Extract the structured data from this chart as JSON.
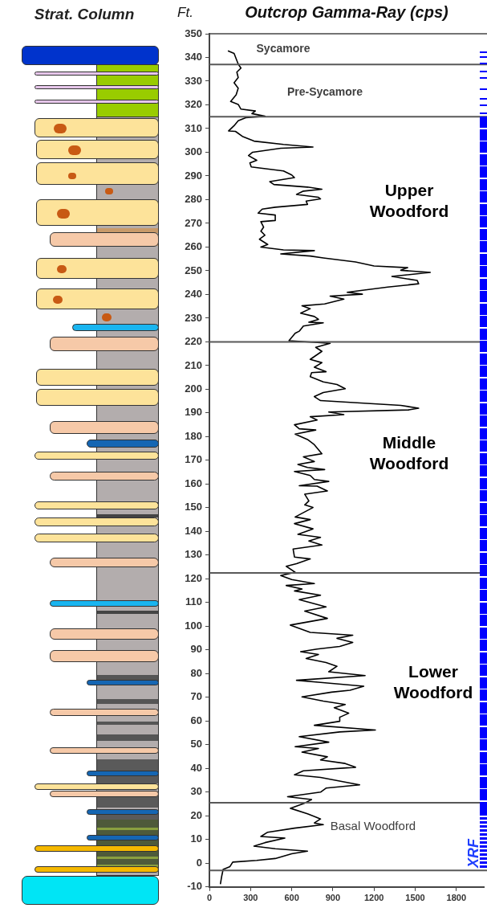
{
  "chart_data": {
    "type": "line",
    "title": "Outcrop Gamma-Ray (cps)",
    "ylabel": "Ft.",
    "xlim": [
      0,
      2000
    ],
    "xticks": [
      0,
      300,
      600,
      900,
      1200,
      1500,
      1800
    ],
    "ylim": [
      -10,
      350
    ],
    "yticks": [
      -10,
      0,
      10,
      20,
      30,
      40,
      50,
      60,
      70,
      80,
      90,
      100,
      110,
      120,
      130,
      140,
      150,
      160,
      170,
      180,
      190,
      200,
      210,
      220,
      230,
      240,
      250,
      260,
      270,
      280,
      290,
      300,
      310,
      320,
      330,
      340,
      350
    ],
    "grid": false,
    "legend": false,
    "marker": "none",
    "line_style": "solid",
    "series": [
      {
        "color": "#000000",
        "x": [
          135,
          180,
          210,
          230,
          200,
          210,
          180,
          210,
          195,
          155,
          210,
          230,
          335,
          310,
          405,
          265,
          210,
          180,
          140,
          190,
          240,
          325,
          540,
          755,
          520,
          315,
          285,
          345,
          295,
          305,
          540,
          600,
          620,
          440,
          470,
          715,
          820,
          685,
          635,
          795,
          810,
          705,
          715,
          480,
          385,
          355,
          480,
          480,
          375,
          395,
          375,
          405,
          365,
          425,
          375,
          540,
          765,
          520,
          735,
          830,
          1065,
          1200,
          1445,
          1395,
          1610,
          1330,
          1515,
          1525,
          1300,
          1105,
          1005,
          1115,
          880,
          980,
          840,
          675,
          735,
          665,
          765,
          795,
          725,
          830,
          685,
          655,
          625,
          580,
          880,
          775,
          820,
          735,
          820,
          765,
          850,
          745,
          735,
          830,
          930,
          990,
          830,
          765,
          810,
          1125,
          1395,
          1525,
          1455,
          870,
          980,
          735,
          785,
          620,
          655,
          775,
          625,
          715,
          765,
          820,
          685,
          765,
          645,
          715,
          840,
          620,
          735,
          765,
          870,
          655,
          785,
          860,
          695,
          725,
          695,
          755,
          625,
          735,
          620,
          755,
          645,
          810,
          725,
          820,
          610,
          620,
          735,
          635,
          560,
          625,
          520,
          600,
          765,
          560,
          675,
          620,
          810,
          655,
          850,
          695,
          860,
          590,
          735,
          1045,
          930,
          1045,
          950,
          785,
          665,
          795,
          705,
          850,
          930,
          870,
          1135,
          635,
          810,
          1125,
          1025,
          890,
          675,
          830,
          990,
          910,
          1015,
          950,
          950,
          765,
          1210,
          950,
          655,
          870,
          625,
          795,
          675,
          860,
          810,
          990,
          1065,
          685,
          620,
          810,
          1095,
          850,
          810,
          570,
          745,
          695,
          590,
          715,
          810,
          765,
          830,
          620,
          425,
          375,
          550,
          405,
          325,
          480,
          715,
          600,
          480,
          345,
          170,
          150,
          100,
          90,
          80
        ],
        "values": [
          342.8,
          341.7,
          337.2,
          335.5,
          333.8,
          331.5,
          329.3,
          327,
          324.2,
          321.4,
          320.2,
          318.2,
          317.4,
          316.3,
          315.2,
          314.6,
          313.3,
          311.2,
          309,
          308.8,
          306.7,
          304.7,
          303.3,
          302.2,
          301.7,
          300,
          298.6,
          296.6,
          295.5,
          293.8,
          292.1,
          290.4,
          289.3,
          287.6,
          286.4,
          285.3,
          284.4,
          283.6,
          282.2,
          281,
          280.3,
          279.4,
          278,
          276.8,
          276,
          274.3,
          273.5,
          271.2,
          270.7,
          268.4,
          266.7,
          265,
          263.3,
          261.1,
          260,
          258.8,
          258.5,
          257.1,
          256.2,
          255.4,
          253.7,
          252,
          251.3,
          250.2,
          249.3,
          247.6,
          245.9,
          244.5,
          243.1,
          241.7,
          240.9,
          240.1,
          239.3,
          238,
          236,
          235.2,
          234,
          232.1,
          230.7,
          229.5,
          228.3,
          228,
          226.7,
          224.5,
          223.6,
          220.5,
          219.4,
          217.7,
          216,
          212.6,
          211.2,
          209.3,
          207.4,
          207,
          205.3,
          203.1,
          202,
          200.2,
          198.6,
          196.9,
          195.2,
          194.1,
          193.2,
          192,
          191.3,
          190.4,
          189.3,
          188.4,
          187,
          185,
          183.3,
          182.8,
          181.1,
          178.8,
          176.6,
          172.8,
          171.5,
          169.5,
          168.3,
          167,
          166.1,
          165.3,
          163.6,
          161.9,
          161.1,
          159.3,
          159.1,
          157.1,
          155.7,
          152.9,
          151.2,
          150.1,
          146.1,
          145,
          143.3,
          141.1,
          138.8,
          137.5,
          136,
          134.3,
          132.6,
          129.2,
          128.4,
          126.4,
          125.3,
          122.8,
          121.4,
          119.7,
          118,
          117.2,
          115.7,
          114.9,
          113.1,
          111.2,
          108.2,
          106.4,
          103.3,
          100.5,
          97.4,
          96.2,
          94.9,
          93.2,
          91.5,
          90.4,
          89.3,
          88.1,
          86.4,
          84.7,
          83.1,
          80.8,
          79.2,
          77.2,
          76.3,
          74.7,
          73,
          72.2,
          70.2,
          68.4,
          67,
          65.6,
          63.3,
          61.6,
          59.9,
          58.2,
          56.2,
          55.4,
          53.4,
          51.1,
          49.2,
          48.4,
          46.9,
          44.9,
          43.6,
          42.1,
          40.5,
          39,
          37.3,
          36.2,
          33.1,
          31.7,
          30,
          28.1,
          26.9,
          25.4,
          23.2,
          20.9,
          18.7,
          17,
          16.3,
          14.8,
          13.1,
          11.3,
          10.6,
          8.7,
          7.2,
          6.1,
          5.1,
          4,
          2,
          1.2,
          0.5,
          -1.4,
          -2.6,
          -5.4,
          -8.8
        ]
      }
    ],
    "ref_lines": [
      {
        "axis": "y",
        "value": 337,
        "color": "#595959"
      },
      {
        "axis": "y",
        "value": 315,
        "color": "#595959"
      },
      {
        "axis": "y",
        "value": 220,
        "color": "#595959"
      },
      {
        "axis": "y",
        "value": 122.5,
        "color": "#595959"
      },
      {
        "axis": "y",
        "value": 25.5,
        "color": "#595959"
      },
      {
        "axis": "y",
        "value": -3,
        "color": "#595959"
      }
    ],
    "annotations": [
      "Strat. Column",
      "Sycamore",
      "Pre-Sycamore",
      "Upper Woodford",
      "Middle Woodford",
      "Lower Woodford",
      "Basal Woodford",
      "XRF"
    ]
  }
}
